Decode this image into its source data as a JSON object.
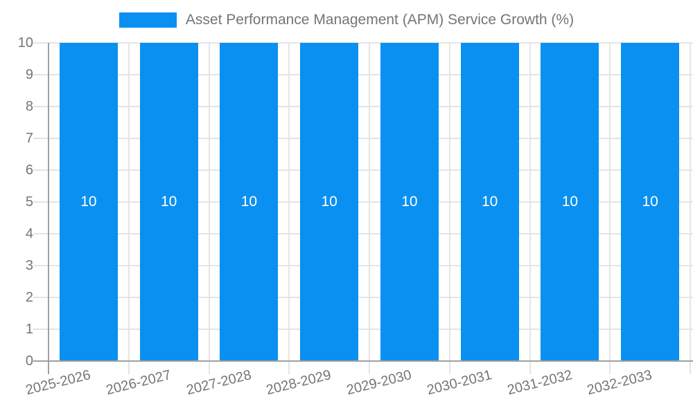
{
  "chart_data": {
    "type": "bar",
    "title": "Asset Performance Management (APM) Service Growth (%)",
    "series_name": "Asset Performance Management (APM) Service Growth (%)",
    "categories": [
      "2025-2026",
      "2026-2027",
      "2027-2028",
      "2028-2029",
      "2029-2030",
      "2030-2031",
      "2031-2032",
      "2032-2033"
    ],
    "values": [
      10,
      10,
      10,
      10,
      10,
      10,
      10,
      10
    ],
    "bar_labels": [
      "10",
      "10",
      "10",
      "10",
      "10",
      "10",
      "10",
      "10"
    ],
    "ylabel": "",
    "xlabel": "",
    "ylim": [
      0,
      10
    ],
    "yticks": [
      0,
      1,
      2,
      3,
      4,
      5,
      6,
      7,
      8,
      9,
      10
    ],
    "legend_position": "top",
    "grid": true,
    "x_label_rotation_deg": -14,
    "colors": {
      "bar": "#0a90f0",
      "grid": "#e4e4e4",
      "axis": "#a0a0a0",
      "tick_label": "#757575",
      "value_label": "#ffffff",
      "background": "#ffffff"
    }
  }
}
